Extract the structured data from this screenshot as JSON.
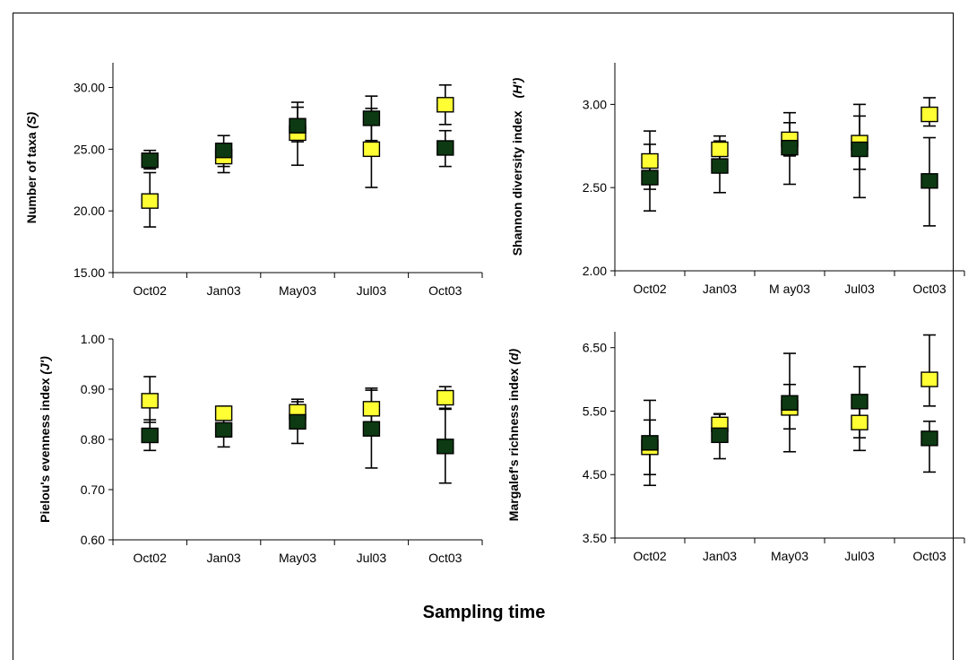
{
  "figure": {
    "xlabel": "Sampling time"
  },
  "colors": {
    "series_a": "#ffff33",
    "series_b": "#0d3a12",
    "frame": "#000000"
  },
  "chart_data": [
    {
      "type": "scatter",
      "ylabel": "Number of taxa (S)",
      "ylabel_plain": "Number of taxa ",
      "ylabel_italic": "(S)",
      "categories": [
        "Oct02",
        "Jan03",
        "May03",
        "Jul03",
        "Oct03"
      ],
      "ylim": [
        15,
        32
      ],
      "yticks": [
        15,
        20,
        25,
        30
      ],
      "tick_decimals": 2,
      "series": [
        {
          "color": "#ffff33",
          "values": [
            20.8,
            24.4,
            26.3,
            25.0,
            28.6
          ],
          "err_low": [
            18.7,
            23.6,
            25.6,
            21.9,
            27.0
          ],
          "err_high": [
            23.1,
            25.3,
            28.8,
            28.3,
            30.2
          ]
        },
        {
          "color": "#0d3a12",
          "values": [
            24.1,
            24.9,
            26.9,
            27.5,
            25.1
          ],
          "err_low": [
            23.4,
            23.1,
            23.7,
            25.7,
            23.6
          ],
          "err_high": [
            24.9,
            26.1,
            28.4,
            29.3,
            26.5
          ]
        }
      ]
    },
    {
      "type": "scatter",
      "ylabel": "Shannon diversity index (H')",
      "ylabel_plain": "Shannon diversity index",
      "ylabel_italic": "(H')",
      "categories": [
        "Oct02",
        "Jan03",
        "M ay03",
        "Jul03",
        "Oct03"
      ],
      "ylim": [
        2.0,
        3.25
      ],
      "yticks": [
        2.0,
        2.5,
        3.0
      ],
      "tick_decimals": 2,
      "series": [
        {
          "color": "#ffff33",
          "values": [
            2.66,
            2.73,
            2.79,
            2.77,
            2.94
          ],
          "err_low": [
            2.49,
            2.66,
            2.69,
            2.61,
            2.87
          ],
          "err_high": [
            2.84,
            2.81,
            2.95,
            2.93,
            3.04
          ]
        },
        {
          "color": "#0d3a12",
          "values": [
            2.56,
            2.63,
            2.74,
            2.73,
            2.54
          ],
          "err_low": [
            2.36,
            2.47,
            2.52,
            2.44,
            2.27
          ],
          "err_high": [
            2.76,
            2.78,
            2.89,
            3.0,
            2.8
          ]
        }
      ]
    },
    {
      "type": "scatter",
      "ylabel": "Pielou's evenness index (J')",
      "ylabel_plain": "Pielou's evenness index ",
      "ylabel_italic": "(J')",
      "categories": [
        "Oct02",
        "Jan03",
        "May03",
        "Jul03",
        "Oct03"
      ],
      "ylim": [
        0.6,
        1.0
      ],
      "yticks": [
        0.6,
        0.7,
        0.8,
        0.9,
        1.0
      ],
      "tick_decimals": 2,
      "series": [
        {
          "color": "#ffff33",
          "values": [
            0.877,
            0.852,
            0.855,
            0.861,
            0.883
          ],
          "err_low": [
            0.834,
            0.838,
            0.832,
            0.823,
            0.862
          ],
          "err_high": [
            0.925,
            0.866,
            0.88,
            0.902,
            0.905
          ]
        },
        {
          "color": "#0d3a12",
          "values": [
            0.808,
            0.819,
            0.835,
            0.821,
            0.786
          ],
          "err_low": [
            0.778,
            0.785,
            0.792,
            0.743,
            0.713
          ],
          "err_high": [
            0.839,
            0.854,
            0.875,
            0.898,
            0.86
          ]
        }
      ]
    },
    {
      "type": "scatter",
      "ylabel": "Margalef's richness index (d)",
      "ylabel_plain": "Margalef's richness index ",
      "ylabel_italic": "(d)",
      "categories": [
        "Oct02",
        "Jan03",
        "May03",
        "Jul03",
        "Oct03"
      ],
      "ylim": [
        3.5,
        6.75
      ],
      "yticks": [
        3.5,
        4.5,
        5.5,
        6.5
      ],
      "tick_decimals": 2,
      "series": [
        {
          "color": "#ffff33",
          "values": [
            4.93,
            5.29,
            5.55,
            5.32,
            6.0
          ],
          "err_low": [
            4.5,
            5.12,
            5.22,
            5.08,
            5.58
          ],
          "err_high": [
            5.36,
            5.46,
            5.92,
            5.56,
            6.7
          ]
        },
        {
          "color": "#0d3a12",
          "values": [
            5.0,
            5.12,
            5.63,
            5.65,
            5.07
          ],
          "err_low": [
            4.33,
            4.75,
            4.86,
            4.88,
            4.54
          ],
          "err_high": [
            5.67,
            5.45,
            6.41,
            6.2,
            5.34
          ]
        }
      ]
    }
  ]
}
